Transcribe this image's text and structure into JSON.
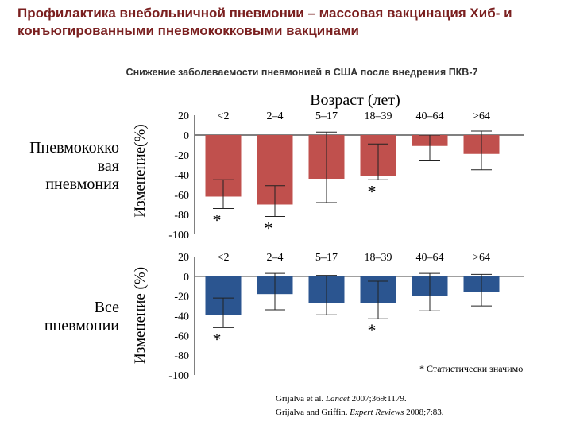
{
  "title": "Профилактика внебольничной пневмонии – массовая вакцинация Хиб- и конъюгированными пневмококковыми вакцинами",
  "subtitle": "Снижение заболеваемости пневмонией в США после внедрения ПКВ-7",
  "age_axis_label": "Возраст (лет)",
  "footnote": "* Статистически значимо",
  "colors": {
    "pneumococcal": "#c0504d",
    "all": "#2b5590"
  },
  "references": [
    {
      "authors": "Grijalva et al.",
      "journal": "Lancet",
      "rest": "2007;369:1179."
    },
    {
      "authors": "Grijalva and Griffin.",
      "journal": "Expert Reviews",
      "rest": "2008;7:83."
    }
  ],
  "chart_data": [
    {
      "type": "bar",
      "row_label": "Пневмококковая пневмония",
      "row_label_lines": [
        "Пневмококко",
        "вая",
        "пневмония"
      ],
      "ylabel": "Изменение(%)",
      "categories": [
        "<2",
        "2–4",
        "5–17",
        "18–39",
        "40–64",
        ">64"
      ],
      "values": [
        -62,
        -70,
        -44,
        -41,
        -11,
        -19
      ],
      "ci_low": [
        -74,
        -82,
        -68,
        -45,
        -26,
        -35
      ],
      "ci_high": [
        -45,
        -51,
        3,
        -9,
        0,
        4
      ],
      "significant": [
        true,
        true,
        false,
        true,
        false,
        false
      ],
      "yticks": [
        "20",
        "0",
        "-20",
        "-40",
        "-60",
        "-80",
        "-100"
      ],
      "ylim": [
        -100,
        20
      ],
      "color": "#c0504d"
    },
    {
      "type": "bar",
      "row_label": "Все пневмонии",
      "row_label_lines": [
        "Все",
        "пневмонии"
      ],
      "ylabel": "Изменение (%)",
      "categories": [
        "<2",
        "2–4",
        "5–17",
        "18–39",
        "40–64",
        ">64"
      ],
      "values": [
        -39,
        -18,
        -27,
        -27,
        -20,
        -16
      ],
      "ci_low": [
        -52,
        -34,
        -39,
        -43,
        -35,
        -30
      ],
      "ci_high": [
        -22,
        3,
        1,
        -5,
        3,
        2
      ],
      "significant": [
        true,
        false,
        false,
        true,
        false,
        false
      ],
      "yticks": [
        "20",
        "0",
        "-20",
        "-40",
        "-60",
        "-80",
        "-100"
      ],
      "ylim": [
        -100,
        20
      ],
      "color": "#2b5590"
    }
  ]
}
